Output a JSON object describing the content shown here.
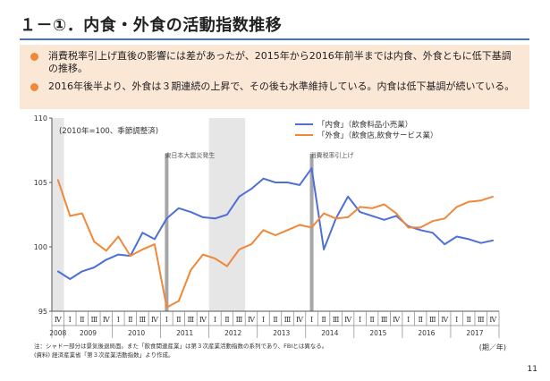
{
  "slide": {
    "title": "１－①．内食・外食の活動指数推移",
    "bullets": [
      "消費税率引上げ直後の影響には差があったが、2015年から2016年前半までは内食、外食ともに低下基調の推移。",
      "2016年後半より、外食は３期連続の上昇で、その後も水準維持している。内食は低下基調が続いている。"
    ],
    "note1": "注：シャド一部分は景気後退局面。また「飲食関連産業」は第３次産業活動指数の系列であり、FBIとは異なる。",
    "note2": "(資料) 経済産業省「第３次産業活動指数」より作成。",
    "page_number": "11"
  },
  "chart_data": {
    "type": "line",
    "subtitle": "(2010年=100、季節調整済)",
    "x_unit_label": "(期／年)",
    "ylim": [
      95,
      110
    ],
    "y_ticks": [
      "95",
      "100",
      "105",
      "110"
    ],
    "quarters": [
      "Ⅳ",
      "Ⅰ",
      "Ⅱ",
      "Ⅲ",
      "Ⅳ",
      "Ⅰ",
      "Ⅱ",
      "Ⅲ",
      "Ⅳ",
      "Ⅰ",
      "Ⅱ",
      "Ⅲ",
      "Ⅳ",
      "Ⅰ",
      "Ⅱ",
      "Ⅲ",
      "Ⅳ",
      "Ⅰ",
      "Ⅱ",
      "Ⅲ",
      "Ⅳ",
      "Ⅰ",
      "Ⅱ",
      "Ⅲ",
      "Ⅳ",
      "Ⅰ",
      "Ⅱ",
      "Ⅲ",
      "Ⅳ",
      "Ⅰ",
      "Ⅱ",
      "Ⅲ",
      "Ⅳ",
      "Ⅰ",
      "Ⅱ",
      "Ⅲ",
      "Ⅳ"
    ],
    "years": [
      {
        "label": "2008",
        "start": 0,
        "end": 0
      },
      {
        "label": "2009",
        "start": 1,
        "end": 4
      },
      {
        "label": "2010",
        "start": 5,
        "end": 8
      },
      {
        "label": "2011",
        "start": 9,
        "end": 12
      },
      {
        "label": "2012",
        "start": 13,
        "end": 16
      },
      {
        "label": "2013",
        "start": 17,
        "end": 20
      },
      {
        "label": "2014",
        "start": 21,
        "end": 24
      },
      {
        "label": "2015",
        "start": 25,
        "end": 28
      },
      {
        "label": "2016",
        "start": 29,
        "end": 32
      },
      {
        "label": "2017",
        "start": 33,
        "end": 36
      }
    ],
    "recessions": [
      [
        0,
        1
      ],
      [
        13,
        16
      ]
    ],
    "events": [
      {
        "label": "東日本大震災発生",
        "at": 9
      },
      {
        "label": "消費税率引上げ",
        "at": 21
      }
    ],
    "series": [
      {
        "name": "「内食」（飲食料品小売業）",
        "color": "#4f6fd8",
        "values": [
          98.1,
          97.5,
          98.1,
          98.4,
          99.0,
          99.4,
          99.3,
          101.1,
          100.6,
          102.2,
          103.0,
          102.7,
          102.3,
          102.2,
          102.5,
          103.9,
          104.5,
          105.3,
          105.0,
          105.0,
          104.8,
          106.1,
          99.8,
          102.2,
          103.9,
          102.7,
          102.4,
          102.1,
          102.4,
          101.6,
          101.3,
          101.1,
          100.2,
          100.8,
          100.6,
          100.3,
          100.5
        ]
      },
      {
        "name": "「外食」（飲食店,飲食サービス業）",
        "color": "#f0883a",
        "values": [
          105.2,
          102.4,
          102.6,
          100.4,
          99.7,
          100.8,
          99.3,
          99.8,
          100.2,
          95.3,
          95.8,
          98.2,
          99.4,
          99.1,
          98.5,
          99.8,
          100.2,
          101.3,
          100.9,
          101.3,
          101.7,
          101.5,
          102.6,
          102.2,
          102.3,
          103.1,
          103.0,
          103.3,
          102.6,
          101.5,
          101.5,
          102.0,
          102.2,
          103.1,
          103.5,
          103.6,
          103.9
        ]
      }
    ]
  }
}
